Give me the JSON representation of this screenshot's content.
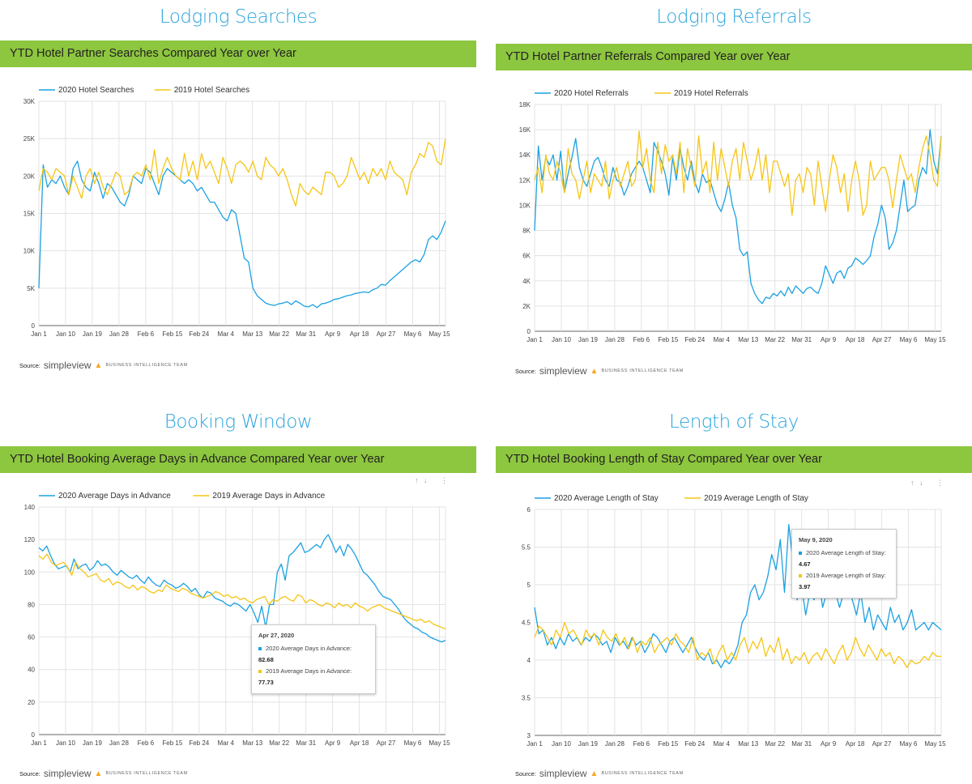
{
  "colors": {
    "s2020": "#1ba1e2",
    "s2019": "#f6c516",
    "green": "#8dc63f",
    "heading": "#2aa4dc"
  },
  "panels": [
    {
      "heading": "Lodging Searches",
      "bar_title": "YTD Hotel Partner Searches Compared Year over Year",
      "source_label": "Source:",
      "brand": "simpleview",
      "brand_sub": "BUSINESS INTELLIGENCE TEAM"
    },
    {
      "heading": "Lodging Referrals",
      "bar_title": "YTD Hotel Partner Referrals Compared Year over Year",
      "source_label": "Source:",
      "brand": "simpleview",
      "brand_sub": "BUSINESS INTELLIGENCE TEAM"
    },
    {
      "heading": "Booking Window",
      "bar_title": "YTD Hotel Booking Average Days in Advance Compared Year over Year",
      "source_label": "Source:",
      "brand": "simpleview",
      "brand_sub": "BUSINESS INTELLIGENCE TEAM",
      "tooltip": {
        "date": "Apr 27, 2020",
        "l2020": "2020 Average Days in Advance:",
        "v2020": "82.68",
        "l2019": "2019 Average Days in Advance:",
        "v2019": "77.73"
      }
    },
    {
      "heading": "Length of Stay",
      "bar_title": "YTD Hotel Booking Length of Stay Compared Year over Year",
      "source_label": "Source:",
      "brand": "simpleview",
      "brand_sub": "BUSINESS INTELLIGENCE TEAM",
      "tooltip": {
        "date": "May 9, 2020",
        "l2020": "2020 Average Length of Stay:",
        "v2020": "4.67",
        "l2019": "2019 Average Length of Stay:",
        "v2019": "3.97"
      }
    }
  ],
  "chart_data": [
    {
      "type": "line",
      "x_ticks": [
        "Jan 1",
        "Jan 10",
        "Jan 19",
        "Jan 28",
        "Feb 6",
        "Feb 15",
        "Feb 24",
        "Mar 4",
        "Mar 13",
        "Mar 22",
        "Mar 31",
        "Apr 9",
        "Apr 18",
        "Apr 27",
        "May 6",
        "May 15"
      ],
      "ylim": [
        0,
        30000
      ],
      "y_ticks": [
        0,
        5000,
        10000,
        15000,
        20000,
        25000,
        30000
      ],
      "y_tick_labels": [
        "0",
        "5K",
        "10K",
        "15K",
        "20K",
        "25K",
        "30K"
      ],
      "legend": "top-left",
      "grid": true,
      "series": [
        {
          "name": "2020 Hotel Searches",
          "values": [
            5000,
            21500,
            18500,
            19500,
            19000,
            20000,
            18500,
            17500,
            21000,
            22000,
            19500,
            18500,
            18000,
            20500,
            19000,
            17000,
            19000,
            18500,
            17500,
            16500,
            16000,
            17500,
            20000,
            19500,
            19000,
            21000,
            20500,
            19000,
            17500,
            20000,
            21000,
            20500,
            20000,
            19500,
            19000,
            19500,
            19000,
            18000,
            18500,
            17500,
            16500,
            16500,
            15500,
            14500,
            14000,
            15500,
            15000,
            12000,
            9000,
            8500,
            5000,
            4000,
            3500,
            3000,
            2800,
            2700,
            2900,
            3000,
            3200,
            2800,
            3300,
            3000,
            2600,
            2500,
            2800,
            2400,
            2900,
            3000,
            3200,
            3500,
            3600,
            3800,
            4000,
            4100,
            4300,
            4400,
            4500,
            4400,
            4800,
            5000,
            5500,
            5400,
            6000,
            6500,
            7000,
            7500,
            8000,
            8500,
            8800,
            8500,
            9500,
            11500,
            12000,
            11500,
            12500,
            14000
          ]
        },
        {
          "name": "2019 Hotel Searches",
          "values": [
            18000,
            21000,
            20500,
            19500,
            21000,
            20500,
            20000,
            17500,
            20000,
            18500,
            17000,
            20000,
            21000,
            19000,
            20500,
            18500,
            17500,
            19000,
            20500,
            20000,
            17500,
            18000,
            20000,
            20500,
            20000,
            21500,
            19500,
            23500,
            19000,
            21000,
            22500,
            21000,
            20000,
            19500,
            23000,
            20000,
            22000,
            19500,
            23000,
            21000,
            22000,
            20500,
            19000,
            22500,
            21000,
            19000,
            21500,
            22000,
            21500,
            20500,
            22000,
            20000,
            19500,
            22500,
            21500,
            21000,
            20000,
            21000,
            19500,
            17500,
            16000,
            19000,
            18000,
            17500,
            18500,
            18000,
            17500,
            20500,
            20500,
            20000,
            18500,
            19000,
            20000,
            22500,
            21000,
            19500,
            20500,
            19000,
            21000,
            20000,
            21000,
            19500,
            22000,
            20500,
            20000,
            19500,
            17500,
            20500,
            21500,
            23000,
            22500,
            24500,
            24000,
            22000,
            21500,
            25000
          ]
        }
      ]
    },
    {
      "type": "line",
      "x_ticks": [
        "Jan 1",
        "Jan 10",
        "Jan 19",
        "Jan 28",
        "Feb 6",
        "Feb 15",
        "Feb 24",
        "Mar 4",
        "Mar 13",
        "Mar 22",
        "Mar 31",
        "Apr 9",
        "Apr 18",
        "Apr 27",
        "May 6",
        "May 15"
      ],
      "ylim": [
        0,
        18000
      ],
      "y_ticks": [
        0,
        2000,
        4000,
        6000,
        8000,
        10000,
        12000,
        14000,
        16000,
        18000
      ],
      "y_tick_labels": [
        "0",
        "2K",
        "4K",
        "6K",
        "8K",
        "10K",
        "12K",
        "14K",
        "16K",
        "18K"
      ],
      "legend": "top-left",
      "grid": true,
      "series": [
        {
          "name": "2020 Hotel Referrals",
          "values": [
            8000,
            14700,
            12000,
            13800,
            13200,
            14000,
            12000,
            14300,
            11000,
            12500,
            13800,
            15300,
            13000,
            12000,
            11500,
            12500,
            13500,
            13800,
            13000,
            12000,
            11500,
            13000,
            12000,
            11800,
            10800,
            11500,
            12500,
            13000,
            13500,
            13000,
            12000,
            11000,
            15000,
            14300,
            13500,
            12500,
            10800,
            13800,
            12000,
            14500,
            13000,
            12000,
            13500,
            11800,
            11000,
            12500,
            11800,
            12000,
            11000,
            10000,
            9500,
            10500,
            11800,
            10000,
            9000,
            6500,
            6000,
            6300,
            3800,
            3000,
            2500,
            2200,
            2700,
            2600,
            3000,
            2800,
            3200,
            2800,
            3500,
            3000,
            3600,
            3300,
            3000,
            3400,
            3500,
            3200,
            3000,
            3800,
            5200,
            4500,
            3800,
            4600,
            4800,
            4200,
            5000,
            5200,
            5800,
            5600,
            5300,
            5600,
            6000,
            7500,
            8500,
            10000,
            9000,
            6500,
            7000,
            8000,
            10000,
            12000,
            9500,
            9800,
            10000,
            12000,
            13000,
            12500,
            16000,
            13500,
            12500,
            15500
          ]
        },
        {
          "name": "2019 Hotel Referrals",
          "values": [
            12000,
            13000,
            11000,
            14000,
            12500,
            12000,
            13500,
            12500,
            11000,
            14500,
            12500,
            12000,
            10500,
            12000,
            13500,
            11000,
            12500,
            12000,
            11500,
            13500,
            10500,
            12000,
            13000,
            11500,
            12500,
            13500,
            11500,
            12000,
            15900,
            13000,
            14500,
            12000,
            11000,
            15000,
            12500,
            14800,
            13500,
            14000,
            12500,
            15000,
            11000,
            14500,
            13000,
            11500,
            15500,
            12500,
            13500,
            11000,
            15000,
            12000,
            14500,
            13000,
            11500,
            13500,
            14500,
            12000,
            15000,
            13500,
            12000,
            13000,
            14500,
            12000,
            14000,
            11000,
            13500,
            13500,
            12500,
            11500,
            12500,
            9200,
            12000,
            12500,
            11000,
            13000,
            12500,
            10000,
            13500,
            11500,
            9500,
            12000,
            14000,
            13000,
            11000,
            12500,
            9500,
            12000,
            13500,
            12000,
            9200,
            10000,
            13500,
            12000,
            12500,
            13000,
            13000,
            12000,
            9800,
            12000,
            14000,
            13000,
            12000,
            12500,
            11000,
            13000,
            14500,
            15500,
            14000,
            12000,
            11500,
            15500
          ]
        }
      ]
    },
    {
      "type": "line",
      "x_ticks": [
        "Jan 1",
        "Jan 10",
        "Jan 19",
        "Jan 28",
        "Feb 6",
        "Feb 15",
        "Feb 24",
        "Mar 4",
        "Mar 13",
        "Mar 22",
        "Mar 31",
        "Apr 9",
        "Apr 18",
        "Apr 27",
        "May 6",
        "May 15"
      ],
      "ylim": [
        0,
        140
      ],
      "y_ticks": [
        0,
        20,
        40,
        60,
        80,
        100,
        120,
        140
      ],
      "y_tick_labels": [
        "0",
        "20",
        "40",
        "60",
        "80",
        "100",
        "120",
        "140"
      ],
      "legend": "top-left",
      "grid": true,
      "series": [
        {
          "name": "2020 Average Days in Advance",
          "values": [
            115,
            113,
            116,
            110,
            105,
            102,
            103,
            104,
            100,
            108,
            102,
            104,
            105,
            101,
            103,
            107,
            104,
            105,
            103,
            100,
            98,
            101,
            99,
            97,
            96,
            98,
            95,
            93,
            97,
            94,
            92,
            91,
            95,
            93,
            92,
            90,
            91,
            93,
            91,
            88,
            90,
            86,
            84,
            88,
            87,
            84,
            83,
            82,
            80,
            79,
            81,
            80,
            78,
            76,
            80,
            75,
            69,
            79,
            66,
            80,
            80,
            100,
            105,
            95,
            110,
            112,
            115,
            118,
            112,
            113,
            115,
            117,
            115,
            120,
            123,
            118,
            112,
            116,
            110,
            117,
            114,
            110,
            105,
            100,
            98,
            95,
            92,
            88,
            85,
            84,
            83,
            80,
            77,
            73,
            70,
            68,
            66,
            65,
            63,
            62,
            60,
            59,
            58,
            57,
            58
          ]
        },
        {
          "name": "2019 Average Days in Advance",
          "values": [
            110,
            108,
            111,
            106,
            104,
            105,
            106,
            103,
            98,
            106,
            102,
            100,
            97,
            98,
            99,
            95,
            94,
            96,
            92,
            94,
            93,
            91,
            90,
            92,
            89,
            91,
            90,
            88,
            87,
            89,
            88,
            92,
            90,
            89,
            88,
            90,
            89,
            87,
            86,
            85,
            84,
            85,
            86,
            88,
            87,
            85,
            86,
            84,
            85,
            83,
            84,
            82,
            81,
            83,
            84,
            85,
            80,
            83,
            82,
            84,
            85,
            83,
            82,
            86,
            85,
            81,
            83,
            82,
            80,
            79,
            81,
            80,
            78,
            81,
            79,
            80,
            78,
            81,
            79,
            78,
            76,
            78,
            79,
            80,
            78,
            77,
            76,
            75,
            74,
            73,
            72,
            71,
            70,
            71,
            69,
            70,
            68,
            67,
            66,
            65
          ]
        }
      ]
    },
    {
      "type": "line",
      "x_ticks": [
        "Jan 1",
        "Jan 10",
        "Jan 19",
        "Jan 28",
        "Feb 6",
        "Feb 15",
        "Feb 24",
        "Mar 4",
        "Mar 13",
        "Mar 22",
        "Mar 31",
        "Apr 9",
        "Apr 18",
        "Apr 27",
        "May 6",
        "May 15"
      ],
      "ylim": [
        3,
        6
      ],
      "y_ticks": [
        3,
        3.5,
        4,
        4.5,
        5,
        5.5,
        6
      ],
      "y_tick_labels": [
        "3",
        "3.5",
        "4",
        "4.5",
        "5",
        "5.5",
        "6"
      ],
      "legend": "top-left",
      "grid": true,
      "series": [
        {
          "name": "2020 Average Length of Stay",
          "values": [
            4.7,
            4.35,
            4.4,
            4.2,
            4.3,
            4.15,
            4.3,
            4.2,
            4.35,
            4.25,
            4.3,
            4.2,
            4.3,
            4.25,
            4.35,
            4.3,
            4.2,
            4.25,
            4.1,
            4.3,
            4.2,
            4.25,
            4.15,
            4.3,
            4.2,
            4.25,
            4.1,
            4.2,
            4.35,
            4.3,
            4.2,
            4.1,
            4.25,
            4.3,
            4.2,
            4.1,
            4.2,
            4.3,
            4.15,
            4.05,
            4.0,
            4.1,
            3.95,
            4.0,
            3.9,
            4.0,
            3.95,
            4.05,
            4.2,
            4.5,
            4.6,
            4.9,
            5.0,
            4.8,
            4.9,
            5.1,
            5.4,
            5.2,
            5.6,
            4.9,
            5.8,
            5.3,
            4.8,
            5.0,
            4.6,
            4.9,
            4.8,
            5.1,
            4.7,
            4.9,
            5.3,
            4.9,
            4.7,
            4.9,
            5.2,
            4.8,
            4.6,
            4.9,
            4.5,
            4.7,
            4.4,
            4.6,
            4.5,
            4.4,
            4.7,
            4.5,
            4.6,
            4.4,
            4.5,
            4.67,
            4.4,
            4.45,
            4.5,
            4.4,
            4.5,
            4.45,
            4.4
          ]
        },
        {
          "name": "2019 Average Length of Stay",
          "values": [
            4.3,
            4.45,
            4.4,
            4.3,
            4.2,
            4.4,
            4.3,
            4.5,
            4.35,
            4.4,
            4.3,
            4.2,
            4.4,
            4.3,
            4.35,
            4.2,
            4.4,
            4.3,
            4.25,
            4.35,
            4.2,
            4.3,
            4.15,
            4.3,
            4.1,
            4.25,
            4.2,
            4.3,
            4.1,
            4.2,
            4.25,
            4.3,
            4.2,
            4.35,
            4.25,
            4.2,
            4.1,
            4.3,
            4.0,
            4.1,
            4.05,
            4.15,
            3.95,
            4.1,
            4.2,
            4.0,
            4.1,
            4.0,
            4.2,
            4.3,
            4.1,
            4.25,
            4.15,
            4.3,
            4.05,
            4.2,
            4.1,
            4.3,
            4.0,
            4.15,
            3.95,
            4.05,
            4.0,
            4.1,
            3.95,
            4.05,
            4.1,
            4.0,
            4.15,
            4.05,
            3.95,
            4.1,
            4.2,
            4.0,
            4.1,
            4.3,
            4.15,
            4.05,
            4.2,
            4.1,
            4.0,
            4.15,
            4.05,
            4.1,
            3.95,
            4.05,
            4.0,
            3.9,
            4.0,
            3.95,
            3.97,
            4.05,
            4.0,
            4.1,
            4.05,
            4.05
          ]
        }
      ]
    }
  ]
}
